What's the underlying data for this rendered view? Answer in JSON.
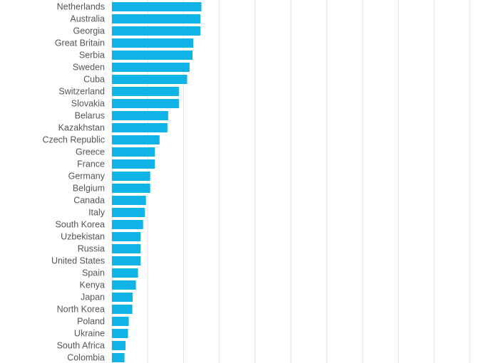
{
  "chart_data": {
    "type": "bar",
    "orientation": "horizontal",
    "bar_color": "#0fb3e6",
    "grid_color": "#e6e6e6",
    "grid": true,
    "xlim": [
      0,
      10
    ],
    "grid_step": 1,
    "categories": [
      "Netherlands",
      "Australia",
      "Georgia",
      "Great Britain",
      "Serbia",
      "Sweden",
      "Cuba",
      "Switzerland",
      "Slovakia",
      "Belarus",
      "Kazakhstan",
      "Czech Republic",
      "Greece",
      "France",
      "Germany",
      "Belgium",
      "Canada",
      "Italy",
      "South Korea",
      "Uzbekistan",
      "Russia",
      "United States",
      "Spain",
      "Kenya",
      "Japan",
      "North Korea",
      "Poland",
      "Ukraine",
      "South Africa",
      "Colombia"
    ],
    "values": [
      2.5,
      2.47,
      2.47,
      2.27,
      2.25,
      2.17,
      2.1,
      1.87,
      1.87,
      1.57,
      1.55,
      1.33,
      1.2,
      1.2,
      1.07,
      1.07,
      0.95,
      0.92,
      0.87,
      0.8,
      0.8,
      0.8,
      0.73,
      0.67,
      0.58,
      0.57,
      0.47,
      0.45,
      0.38,
      0.35
    ]
  }
}
